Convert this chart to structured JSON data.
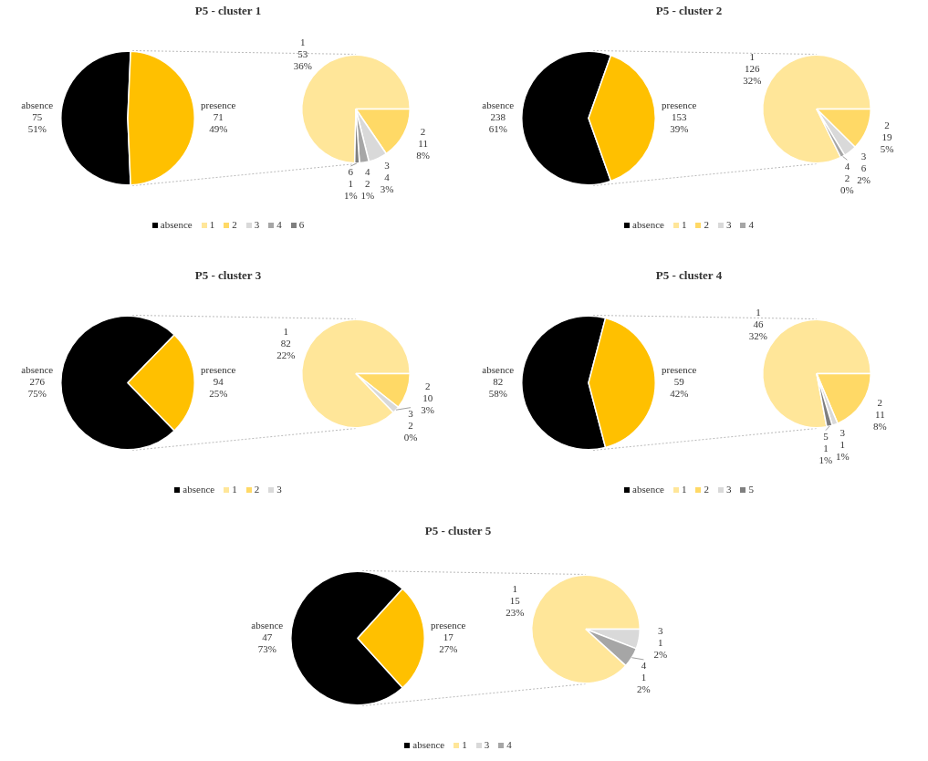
{
  "chart_data": [
    {
      "type": "pie",
      "title": "P5 - cluster 1",
      "categories": [
        "absence",
        "presence"
      ],
      "values": [
        75,
        71
      ],
      "annotations": [
        "51%",
        "49%"
      ],
      "colors": [
        "#000000",
        "#ffc000"
      ],
      "data_labels": true,
      "legend": "bottom"
    },
    {
      "type": "pie",
      "categories": [
        "1",
        "2",
        "3",
        "4",
        "6"
      ],
      "values": [
        53,
        11,
        4,
        2,
        1
      ],
      "annotations": [
        "36%",
        "8%",
        "3%",
        "1%",
        "1%"
      ],
      "colors": [
        "#ffe699",
        "#ffd966",
        "#d9d9d9",
        "#a6a6a6",
        "#7f7f7f"
      ],
      "data_labels": true,
      "legend": "bottom"
    },
    {
      "type": "pie",
      "title": "P5 - cluster 2",
      "categories": [
        "absence",
        "presence"
      ],
      "values": [
        238,
        153
      ],
      "annotations": [
        "61%",
        "39%"
      ],
      "colors": [
        "#000000",
        "#ffc000"
      ],
      "data_labels": true,
      "legend": "bottom"
    },
    {
      "type": "pie",
      "categories": [
        "1",
        "2",
        "3",
        "4"
      ],
      "values": [
        126,
        19,
        6,
        2
      ],
      "annotations": [
        "32%",
        "5%",
        "2%",
        "0%"
      ],
      "colors": [
        "#ffe699",
        "#ffd966",
        "#d9d9d9",
        "#a6a6a6"
      ],
      "data_labels": true,
      "legend": "bottom"
    },
    {
      "type": "pie",
      "title": "P5 - cluster 3",
      "categories": [
        "absence",
        "presence"
      ],
      "values": [
        276,
        94
      ],
      "annotations": [
        "75%",
        "25%"
      ],
      "colors": [
        "#000000",
        "#ffc000"
      ],
      "data_labels": true,
      "legend": "bottom"
    },
    {
      "type": "pie",
      "categories": [
        "1",
        "2",
        "3"
      ],
      "values": [
        82,
        10,
        2
      ],
      "annotations": [
        "22%",
        "3%",
        "0%"
      ],
      "colors": [
        "#ffe699",
        "#ffd966",
        "#d9d9d9"
      ],
      "data_labels": true,
      "legend": "bottom"
    },
    {
      "type": "pie",
      "title": "P5 - cluster 4",
      "categories": [
        "absence",
        "presence"
      ],
      "values": [
        82,
        59
      ],
      "annotations": [
        "58%",
        "42%"
      ],
      "colors": [
        "#000000",
        "#ffc000"
      ],
      "data_labels": true,
      "legend": "bottom"
    },
    {
      "type": "pie",
      "categories": [
        "1",
        "2",
        "3",
        "5"
      ],
      "values": [
        46,
        11,
        1,
        1
      ],
      "annotations": [
        "32%",
        "8%",
        "1%",
        "1%"
      ],
      "colors": [
        "#ffe699",
        "#ffd966",
        "#d9d9d9",
        "#7f7f7f"
      ],
      "data_labels": true,
      "legend": "bottom"
    },
    {
      "type": "pie",
      "title": "P5 - cluster 5",
      "categories": [
        "absence",
        "presence"
      ],
      "values": [
        47,
        17
      ],
      "annotations": [
        "73%",
        "27%"
      ],
      "colors": [
        "#000000",
        "#ffc000"
      ],
      "data_labels": true,
      "legend": "bottom"
    },
    {
      "type": "pie",
      "categories": [
        "1",
        "3",
        "4"
      ],
      "values": [
        15,
        1,
        1
      ],
      "annotations": [
        "23%",
        "2%",
        "2%"
      ],
      "colors": [
        "#ffe699",
        "#d9d9d9",
        "#a6a6a6"
      ],
      "data_labels": true,
      "legend": "bottom"
    }
  ]
}
